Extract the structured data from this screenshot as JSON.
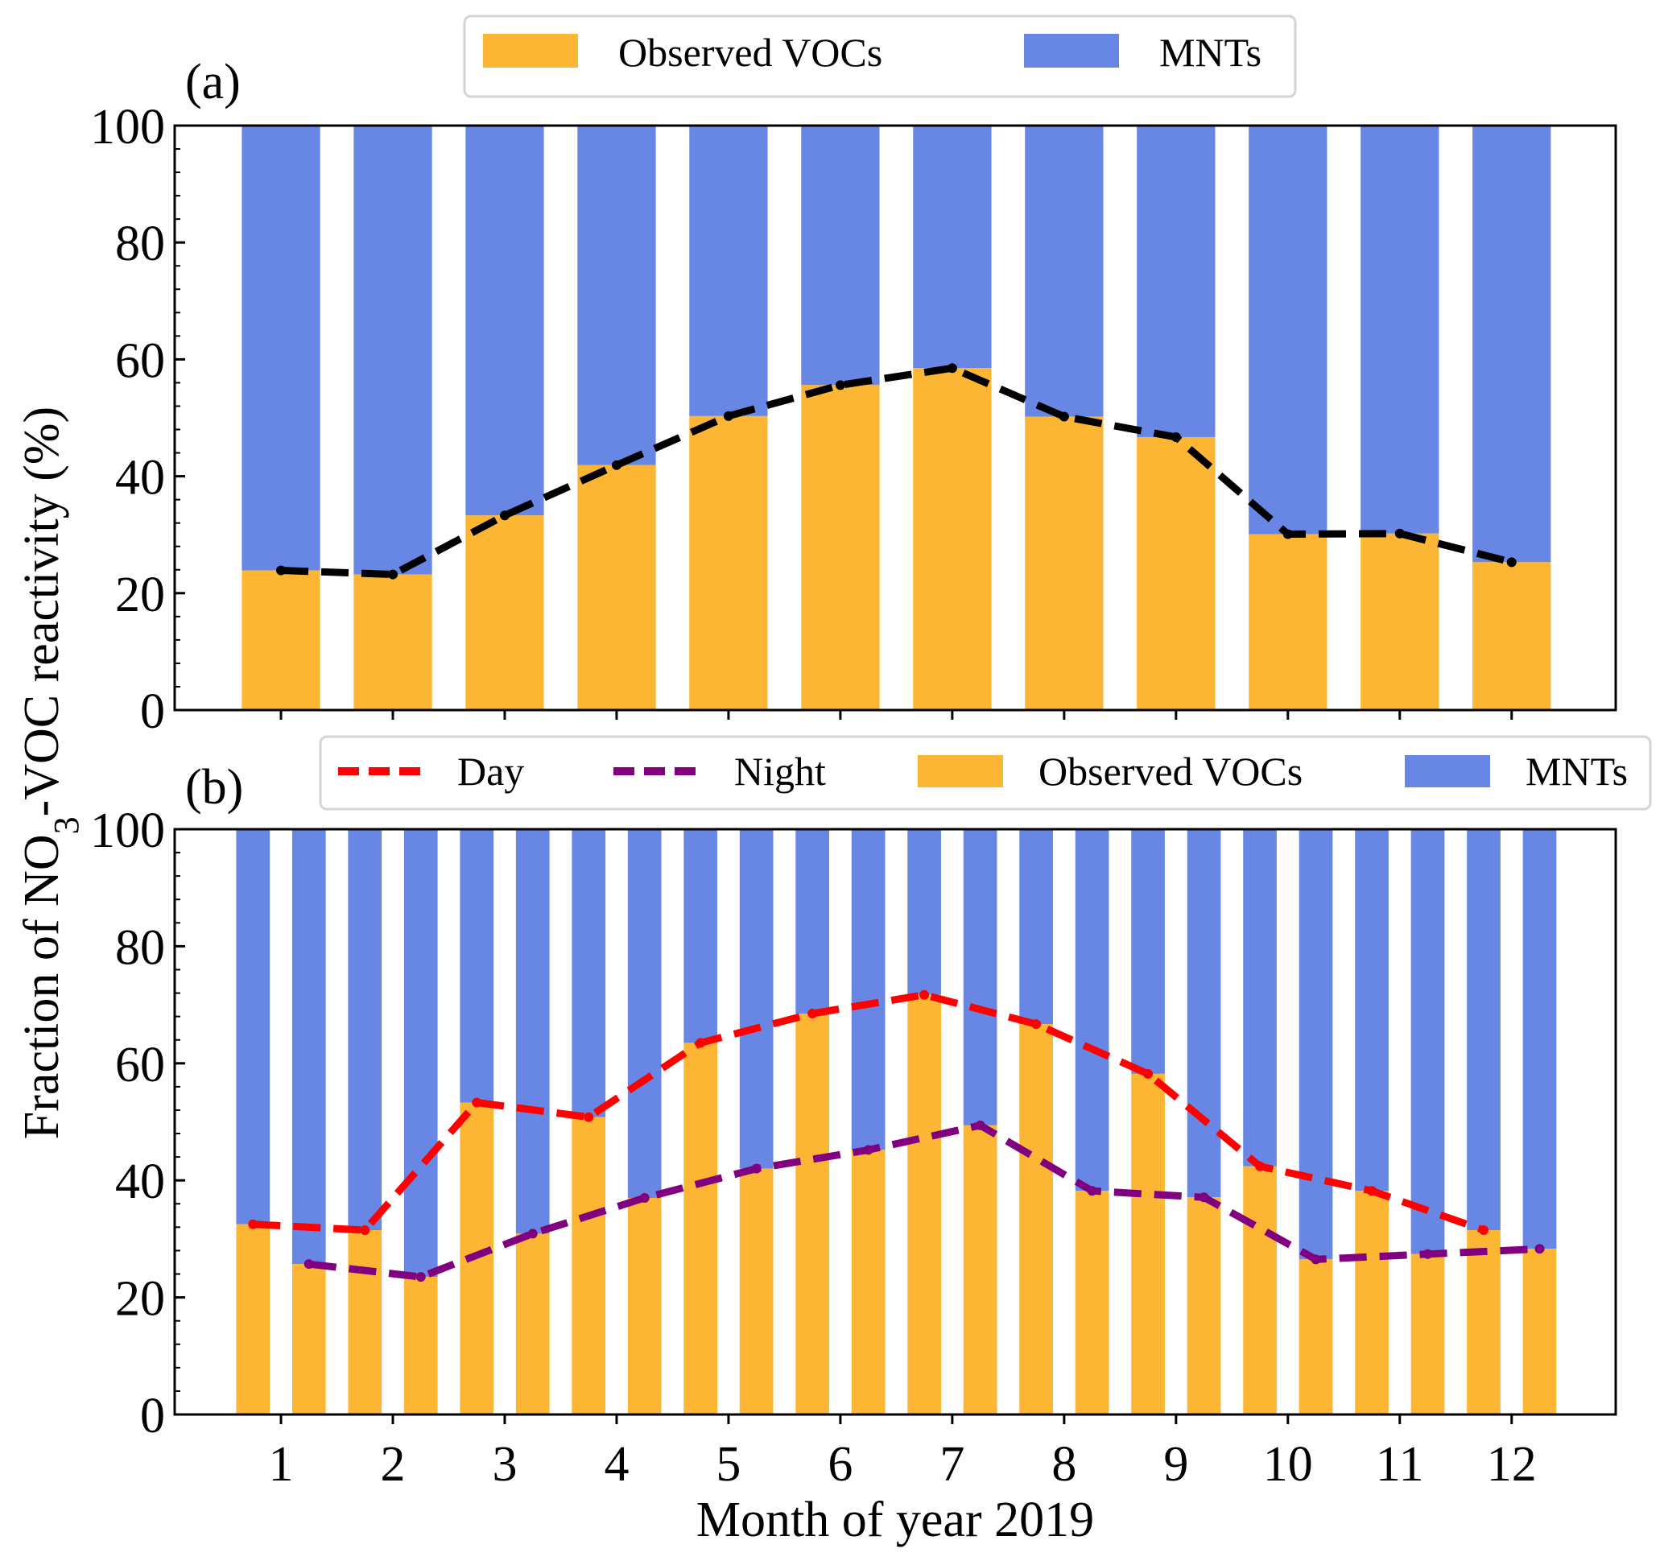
{
  "chart_data": [
    {
      "panel": "(a)",
      "type": "bar",
      "stacked": true,
      "categories": [
        1,
        2,
        3,
        4,
        5,
        6,
        7,
        8,
        9,
        10,
        11,
        12
      ],
      "series": [
        {
          "name": "Observed VOCs",
          "color": "#FDB633",
          "values": [
            23.9,
            23.2,
            33.3,
            41.9,
            50.3,
            55.6,
            58.5,
            50.2,
            46.7,
            30.1,
            30.2,
            25.3
          ]
        },
        {
          "name": "MNTs",
          "color": "#6887E4",
          "values": [
            76.1,
            76.8,
            66.7,
            58.1,
            49.7,
            44.4,
            41.5,
            49.8,
            53.3,
            69.9,
            69.8,
            74.7
          ]
        }
      ],
      "lines": [
        {
          "name": "Observed VOCs fraction",
          "color": "#000000",
          "style": "dashed",
          "x": [
            1,
            2,
            3,
            4,
            5,
            6,
            7,
            8,
            9,
            10,
            11,
            12
          ],
          "values": [
            23.9,
            23.2,
            33.3,
            41.9,
            50.3,
            55.6,
            58.5,
            50.2,
            46.7,
            30.1,
            30.2,
            25.3
          ]
        }
      ],
      "legend": [
        "Observed VOCs",
        "MNTs"
      ],
      "legend_position": "top-center",
      "ylim": [
        0,
        100
      ],
      "yticks": [
        0,
        20,
        40,
        60,
        80,
        100
      ],
      "xticks": [
        1,
        2,
        3,
        4,
        5,
        6,
        7,
        8,
        9,
        10,
        11,
        12
      ],
      "show_xticklabels": false
    },
    {
      "panel": "(b)",
      "type": "bar",
      "stacked": true,
      "categories": [
        1,
        2,
        3,
        4,
        5,
        6,
        7,
        8,
        9,
        10,
        11,
        12
      ],
      "day": {
        "observed_vocs": [
          32.5,
          31.5,
          53.3,
          50.8,
          63.5,
          68.5,
          71.7,
          66.7,
          58.2,
          42.4,
          38.2,
          31.5
        ]
      },
      "night": {
        "observed_vocs": [
          25.7,
          23.5,
          30.9,
          37.0,
          42.0,
          45.2,
          49.4,
          38.2,
          37.1,
          26.5,
          27.4,
          28.3
        ]
      },
      "series": [
        {
          "name": "Observed VOCs",
          "color": "#FDB633"
        },
        {
          "name": "MNTs",
          "color": "#6887E4"
        }
      ],
      "lines": [
        {
          "name": "Day",
          "color": "#FF0000",
          "style": "dashed",
          "offset": -0.25,
          "values": [
            32.5,
            31.5,
            53.3,
            50.8,
            63.5,
            68.5,
            71.7,
            66.7,
            58.2,
            42.4,
            38.2,
            31.5
          ]
        },
        {
          "name": "Night",
          "color": "#800080",
          "style": "dashed",
          "offset": 0.25,
          "values": [
            25.7,
            23.5,
            30.9,
            37.0,
            42.0,
            45.2,
            49.4,
            38.2,
            37.1,
            26.5,
            27.4,
            28.3
          ]
        }
      ],
      "legend": [
        "Day",
        "Night",
        "Observed VOCs",
        "MNTs"
      ],
      "legend_position": "top-center",
      "ylim": [
        0,
        100
      ],
      "yticks": [
        0,
        20,
        40,
        60,
        80,
        100
      ],
      "xticks": [
        1,
        2,
        3,
        4,
        5,
        6,
        7,
        8,
        9,
        10,
        11,
        12
      ],
      "xlabel": "Month of year 2019"
    }
  ],
  "labels": {
    "panel_a": "(a)",
    "panel_b": "(b)",
    "ylabel_prefix": "Fraction of NO",
    "ylabel_sub": "3",
    "ylabel_suffix": "-VOC reactivity (%)",
    "xlabel": "Month of year 2019",
    "legend_observed": "Observed VOCs",
    "legend_mnts": "MNTs",
    "legend_day": "Day",
    "legend_night": "Night"
  }
}
